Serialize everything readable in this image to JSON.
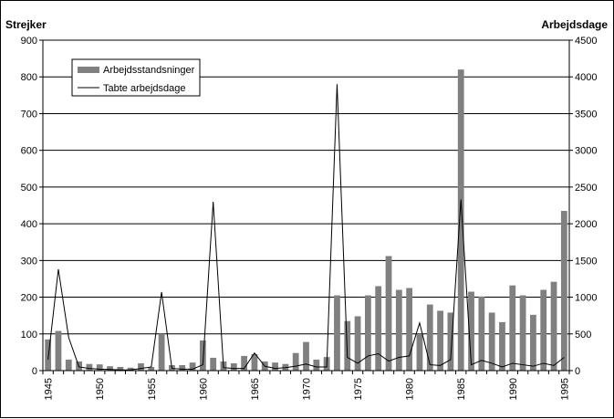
{
  "chart_data": {
    "type": "bar+line",
    "left_axis_title": "Strejker",
    "right_axis_title": "Arbejdsdage",
    "left_ylim": [
      0,
      900
    ],
    "left_ticks": [
      0,
      100,
      200,
      300,
      400,
      500,
      600,
      700,
      800,
      900
    ],
    "right_ylim": [
      0,
      4500
    ],
    "right_ticks": [
      0,
      500,
      1000,
      1500,
      2000,
      2500,
      3000,
      3500,
      4000,
      4500
    ],
    "x_tick_labels": [
      "1945",
      "1950",
      "1955",
      "1960",
      "1965",
      "1970",
      "1975",
      "1980",
      "1985",
      "1990",
      "1995"
    ],
    "grid": "horizontal",
    "legend_position": "top-left",
    "colors": {
      "bars": "#808080",
      "line": "#000000"
    },
    "years": [
      1945,
      1946,
      1947,
      1948,
      1949,
      1950,
      1951,
      1952,
      1953,
      1954,
      1955,
      1956,
      1957,
      1958,
      1959,
      1960,
      1961,
      1962,
      1963,
      1964,
      1965,
      1966,
      1967,
      1968,
      1969,
      1970,
      1971,
      1972,
      1973,
      1974,
      1975,
      1976,
      1977,
      1978,
      1979,
      1980,
      1981,
      1982,
      1983,
      1984,
      1985,
      1986,
      1987,
      1988,
      1989,
      1990,
      1991,
      1992,
      1993,
      1994,
      1995
    ],
    "series": [
      {
        "name": "Arbejdsstandsninger",
        "kind": "bar",
        "axis": "left",
        "values": [
          85,
          108,
          30,
          25,
          18,
          17,
          12,
          10,
          8,
          20,
          10,
          100,
          15,
          15,
          22,
          82,
          35,
          25,
          20,
          40,
          45,
          25,
          22,
          18,
          48,
          78,
          30,
          37,
          205,
          135,
          148,
          205,
          230,
          312,
          220,
          225,
          100,
          180,
          163,
          158,
          820,
          215,
          202,
          158,
          132,
          232,
          205,
          152,
          220,
          242,
          435
        ]
      },
      {
        "name": "Tabte arbejdsdage",
        "kind": "line",
        "axis": "right",
        "values": [
          150,
          1380,
          450,
          50,
          30,
          20,
          15,
          10,
          10,
          30,
          50,
          1070,
          30,
          20,
          20,
          80,
          2300,
          40,
          30,
          30,
          240,
          60,
          30,
          40,
          60,
          90,
          50,
          50,
          3900,
          180,
          100,
          200,
          230,
          130,
          180,
          200,
          650,
          80,
          70,
          150,
          2330,
          80,
          140,
          100,
          50,
          100,
          80,
          60,
          100,
          70,
          180
        ]
      }
    ]
  }
}
